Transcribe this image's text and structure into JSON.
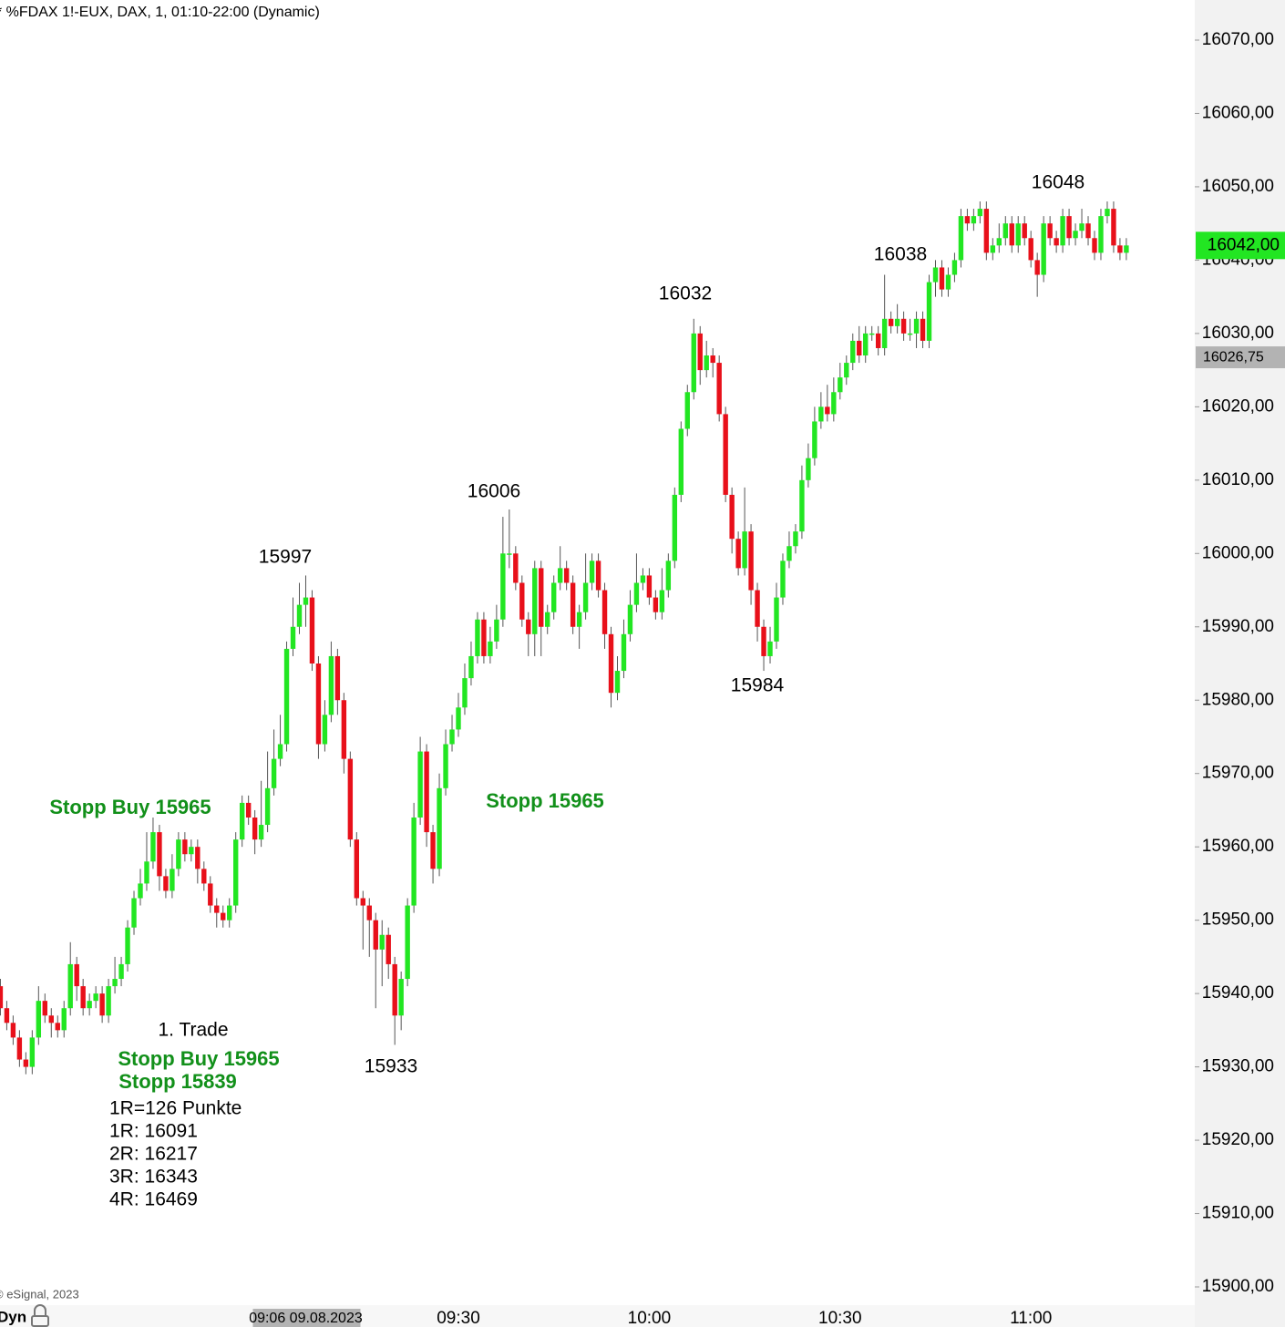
{
  "chart_data": {
    "type": "candlestick",
    "title": "* %FDAX 1!-EUX, DAX, 1, 01:10-22:00 (Dynamic)",
    "copyright": "© eSignal, 2023",
    "mode_label": "Dyn",
    "up_color": "#22e622",
    "down_color": "#e8101a",
    "ylim": [
      15900,
      16070
    ],
    "yticks": [
      {
        "value": 15900,
        "label": "15900,00"
      },
      {
        "value": 15910,
        "label": "15910,00"
      },
      {
        "value": 15920,
        "label": "15920,00"
      },
      {
        "value": 15930,
        "label": "15930,00"
      },
      {
        "value": 15940,
        "label": "15940,00"
      },
      {
        "value": 15950,
        "label": "15950,00"
      },
      {
        "value": 15960,
        "label": "15960,00"
      },
      {
        "value": 15970,
        "label": "15970,00"
      },
      {
        "value": 15980,
        "label": "15980,00"
      },
      {
        "value": 15990,
        "label": "15990,00"
      },
      {
        "value": 16000,
        "label": "16000,00"
      },
      {
        "value": 16010,
        "label": "16010,00"
      },
      {
        "value": 16020,
        "label": "16020,00"
      },
      {
        "value": 16030,
        "label": "16030,00"
      },
      {
        "value": 16040,
        "label": "16040,00"
      },
      {
        "value": 16050,
        "label": "16050,00"
      },
      {
        "value": 16060,
        "label": "16060,00"
      },
      {
        "value": 16070,
        "label": "16070,00"
      }
    ],
    "last_price": {
      "value": 16042,
      "label": "16042,00"
    },
    "crosshair_price": {
      "value": 16026.75,
      "label": "16026,75"
    },
    "categories": [
      null,
      null,
      null,
      null,
      null,
      null,
      null,
      null,
      null,
      null,
      null,
      null,
      null,
      null,
      null,
      null,
      null,
      null,
      null,
      null,
      null,
      null,
      null,
      null,
      null,
      null,
      null,
      null,
      null,
      null,
      null,
      null,
      null,
      null,
      null,
      null,
      null,
      null,
      null,
      null,
      null,
      null,
      null,
      null,
      null,
      null,
      null,
      null,
      "09:06 09.08.2023",
      null,
      null,
      null,
      null,
      null,
      null,
      null,
      null,
      null,
      null,
      null,
      null,
      null,
      null,
      null,
      null,
      null,
      null,
      null,
      null,
      null,
      null,
      null,
      "09:30",
      null,
      null,
      null,
      null,
      null,
      null,
      null,
      null,
      null,
      null,
      null,
      null,
      null,
      null,
      null,
      null,
      null,
      null,
      null,
      null,
      null,
      null,
      null,
      null,
      null,
      null,
      null,
      null,
      null,
      "10:00",
      null,
      null,
      null,
      null,
      null,
      null,
      null,
      null,
      null,
      null,
      null,
      null,
      null,
      null,
      null,
      null,
      null,
      null,
      null,
      null,
      null,
      null,
      null,
      null,
      null,
      null,
      null,
      null,
      null,
      "10:30",
      null,
      null,
      null,
      null,
      null,
      null,
      null,
      null,
      null,
      null,
      null,
      null,
      null,
      null,
      null,
      null,
      null,
      null,
      null,
      null,
      null,
      null,
      null,
      null,
      null,
      null,
      null,
      null,
      null,
      "11:00",
      null,
      null,
      null,
      null,
      null,
      null,
      null,
      null,
      null,
      null,
      null,
      null,
      null,
      null,
      null
    ],
    "open": [
      15941,
      15938,
      15936,
      15934,
      15931,
      15930,
      15934,
      15939,
      15937,
      15936,
      15935,
      15938,
      15944,
      15941,
      15938,
      15939,
      15940,
      15937,
      15941,
      15942,
      15944,
      15949,
      15953,
      15955,
      15958,
      15962,
      15956,
      15954,
      15957,
      15961,
      15959,
      15960,
      15957,
      15955,
      15952,
      15951,
      15950,
      15952,
      15961,
      15966,
      15964,
      15961,
      15963,
      15968,
      15972,
      15974,
      15987,
      15990,
      15993,
      15994,
      15985,
      15974,
      15978,
      15986,
      15980,
      15972,
      15961,
      15953,
      15952,
      15950,
      15946,
      15948,
      15944,
      15937,
      15942,
      15952,
      15964,
      15973,
      15962,
      15957,
      15968,
      15974,
      15976,
      15979,
      15983,
      15986,
      15991,
      15986,
      15988,
      15991,
      16000,
      16000,
      15996,
      15991,
      15989,
      15998,
      15990,
      15992,
      15996,
      15998,
      15996,
      15990,
      15992,
      15996,
      15999,
      15995,
      15989,
      15981,
      15984,
      15989,
      15993,
      15996,
      15997,
      15994,
      15992,
      15995,
      15999,
      16008,
      16017,
      16022,
      16030,
      16025,
      16027,
      16026,
      16019,
      16008,
      16002,
      15998,
      16003,
      15995,
      15990,
      15986,
      15988,
      15994,
      15999,
      16001,
      16003,
      16010,
      16013,
      16018,
      16020,
      16019,
      16022,
      16024,
      16026,
      16029,
      16027,
      16030,
      16030,
      16028,
      16032,
      16031,
      16032,
      16030,
      16030,
      16032,
      16029,
      16037,
      16039,
      16036,
      16038,
      16040,
      16046,
      16045,
      16046,
      16047,
      16041,
      16042,
      16043,
      16045,
      16042,
      16045,
      16043,
      16040,
      16038,
      16045,
      16043,
      16042,
      16046,
      16043,
      16044,
      16045,
      16043,
      16041,
      16046,
      16047,
      16042,
      16041
    ],
    "high": [
      15942,
      15939,
      15937,
      15935,
      15932,
      15935,
      15941,
      15940,
      15938,
      15937,
      15939,
      15947,
      15945,
      15942,
      15940,
      15941,
      15941,
      15942,
      15945,
      15945,
      15950,
      15954,
      15957,
      15962,
      15964,
      15963,
      15957,
      15959,
      15962,
      15962,
      15961,
      15961,
      15958,
      15956,
      15953,
      15952,
      15953,
      15962,
      15967,
      15967,
      15965,
      15969,
      15973,
      15976,
      15978,
      15988,
      15994,
      15996,
      15997,
      15995,
      15986,
      15980,
      15988,
      15987,
      15981,
      15973,
      15962,
      15954,
      15953,
      15951,
      15950,
      15949,
      15945,
      15943,
      15953,
      15966,
      15975,
      15974,
      15963,
      15970,
      15976,
      15978,
      15981,
      15985,
      15988,
      15992,
      15992,
      15990,
      15993,
      16005,
      16006,
      16001,
      15997,
      15992,
      15999,
      15999,
      15993,
      15997,
      16001,
      15999,
      15997,
      15993,
      16000,
      16000,
      16000,
      15996,
      15990,
      15986,
      15991,
      15995,
      16000,
      15998,
      15998,
      15995,
      15998,
      16000,
      16009,
      16018,
      16023,
      16032,
      16031,
      16029,
      16028,
      16027,
      16020,
      16009,
      16003,
      16009,
      16004,
      15996,
      15991,
      15990,
      15996,
      16000,
      16003,
      16004,
      16012,
      16015,
      16020,
      16022,
      16023,
      16024,
      16026,
      16027,
      16030,
      16031,
      16031,
      16031,
      16031,
      16038,
      16033,
      16034,
      16033,
      16032,
      16033,
      16033,
      16038,
      16040,
      16040,
      16039,
      16041,
      16047,
      16047,
      16047,
      16048,
      16048,
      16043,
      16045,
      16046,
      16046,
      16046,
      16046,
      16044,
      16041,
      16046,
      16046,
      16044,
      16047,
      16047,
      16045,
      16047,
      16046,
      16044,
      16047,
      16048,
      16048,
      16043,
      16043
    ],
    "low": [
      15937,
      15935,
      15933,
      15930,
      15929,
      15929,
      15933,
      15936,
      15934,
      15934,
      15934,
      15937,
      15939,
      15937,
      15937,
      15938,
      15936,
      15936,
      15940,
      15941,
      15943,
      15948,
      15952,
      15954,
      15957,
      15954,
      15953,
      15953,
      15956,
      15958,
      15958,
      15955,
      15954,
      15951,
      15949,
      15949,
      15949,
      15951,
      15960,
      15963,
      15959,
      15960,
      15962,
      15967,
      15971,
      15973,
      15986,
      15989,
      15990,
      15984,
      15972,
      15973,
      15977,
      15978,
      15970,
      15960,
      15952,
      15946,
      15945,
      15938,
      15941,
      15942,
      15933,
      15935,
      15941,
      15951,
      15963,
      15960,
      15955,
      15956,
      15967,
      15973,
      15975,
      15978,
      15982,
      15985,
      15985,
      15985,
      15987,
      15990,
      15998,
      15995,
      15990,
      15986,
      15986,
      15986,
      15989,
      15991,
      15995,
      15995,
      15989,
      15987,
      15991,
      15995,
      15994,
      15987,
      15979,
      15980,
      15983,
      15988,
      15992,
      15995,
      15993,
      15991,
      15991,
      15994,
      15998,
      16007,
      16016,
      16021,
      16023,
      16024,
      16024,
      16018,
      16007,
      16000,
      15997,
      15997,
      15993,
      15988,
      15984,
      15985,
      15987,
      15993,
      15998,
      16000,
      16002,
      16009,
      16012,
      16017,
      16018,
      16018,
      16021,
      16023,
      16025,
      16026,
      16026,
      16029,
      16027,
      16027,
      16030,
      16030,
      16029,
      16029,
      16028,
      16028,
      16028,
      16035,
      16035,
      16035,
      16037,
      16039,
      16044,
      16044,
      16045,
      16040,
      16040,
      16041,
      16042,
      16041,
      16041,
      16042,
      16039,
      16035,
      16037,
      16042,
      16041,
      16041,
      16042,
      16042,
      16043,
      16042,
      16040,
      16040,
      16045,
      16041,
      16040,
      16040
    ],
    "close": [
      15938,
      15936,
      15934,
      15931,
      15930,
      15934,
      15939,
      15937,
      15936,
      15935,
      15938,
      15944,
      15941,
      15938,
      15939,
      15940,
      15937,
      15941,
      15942,
      15944,
      15949,
      15953,
      15955,
      15958,
      15962,
      15956,
      15954,
      15957,
      15961,
      15959,
      15960,
      15957,
      15955,
      15952,
      15951,
      15950,
      15952,
      15961,
      15966,
      15964,
      15961,
      15963,
      15968,
      15972,
      15974,
      15987,
      15990,
      15993,
      15994,
      15985,
      15974,
      15978,
      15986,
      15980,
      15972,
      15961,
      15953,
      15952,
      15950,
      15946,
      15948,
      15944,
      15937,
      15942,
      15952,
      15964,
      15973,
      15962,
      15957,
      15968,
      15974,
      15976,
      15979,
      15983,
      15986,
      15991,
      15986,
      15988,
      15991,
      16000,
      16000,
      15996,
      15991,
      15989,
      15998,
      15990,
      15992,
      15996,
      15998,
      15996,
      15990,
      15992,
      15996,
      15999,
      15995,
      15989,
      15981,
      15984,
      15989,
      15993,
      15996,
      15997,
      15994,
      15992,
      15995,
      15999,
      16008,
      16017,
      16022,
      16030,
      16025,
      16027,
      16026,
      16019,
      16008,
      16002,
      15998,
      16003,
      15995,
      15990,
      15986,
      15988,
      15994,
      15999,
      16001,
      16003,
      16010,
      16013,
      16018,
      16020,
      16019,
      16022,
      16024,
      16026,
      16029,
      16027,
      16030,
      16030,
      16028,
      16032,
      16031,
      16032,
      16030,
      16030,
      16032,
      16029,
      16037,
      16039,
      16036,
      16038,
      16040,
      16046,
      16045,
      16046,
      16047,
      16041,
      16042,
      16043,
      16045,
      16042,
      16045,
      16043,
      16040,
      16038,
      16045,
      16043,
      16042,
      16046,
      16043,
      16044,
      16045,
      16043,
      16041,
      16046,
      16047,
      16042,
      16041,
      16042
    ],
    "annotations": [
      "15997",
      "16006",
      "16032",
      "16038",
      "16048",
      "15933",
      "15984",
      "Stopp Buy 15965",
      "Stopp 15965",
      "1. Trade",
      "Stopp Buy 15965",
      "Stopp 15839",
      "1R=126 Punkte",
      "1R: 16091",
      "2R: 16217",
      "3R: 16343",
      "4R: 16469"
    ]
  }
}
